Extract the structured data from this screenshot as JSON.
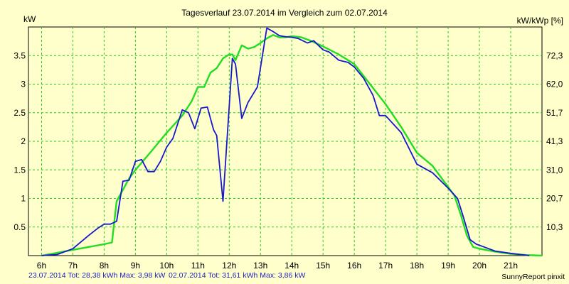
{
  "chart_data": {
    "type": "line",
    "title": "Tagesverlauf 23.07.2014 im Vergleich zum 02.07.2014",
    "ylabel_left": "kW",
    "ylabel_right": "kW/kWp [%]",
    "x_range": [
      5.58,
      22.0
    ],
    "ylim": [
      0,
      4.0
    ],
    "grid": true,
    "x_tick_labels": [
      "6h",
      "7h",
      "8h",
      "9h",
      "10h",
      "11h",
      "12h",
      "13h",
      "14h",
      "15h",
      "16h",
      "17h",
      "18h",
      "19h",
      "20h",
      "21h"
    ],
    "x_tick_values": [
      6,
      7,
      8,
      9,
      10,
      11,
      12,
      13,
      14,
      15,
      16,
      17,
      18,
      19,
      20,
      21
    ],
    "y_left_ticks": [
      {
        "value": 0.5,
        "label": "0.5"
      },
      {
        "value": 1,
        "label": "1"
      },
      {
        "value": 1.5,
        "label": "1.5"
      },
      {
        "value": 2,
        "label": "2"
      },
      {
        "value": 2.5,
        "label": "2.5"
      },
      {
        "value": 3,
        "label": "3"
      },
      {
        "value": 3.5,
        "label": "3.5"
      }
    ],
    "y_right_ticks": [
      {
        "value": 0.5,
        "label": "10,3"
      },
      {
        "value": 1,
        "label": "20,7"
      },
      {
        "value": 1.5,
        "label": "31,0"
      },
      {
        "value": 2,
        "label": "41,3"
      },
      {
        "value": 2.5,
        "label": "51,7"
      },
      {
        "value": 3,
        "label": "62,0"
      },
      {
        "value": 3.5,
        "label": "72,3"
      }
    ],
    "series": [
      {
        "name": "02.07.2014",
        "color": "#22dd22",
        "points": [
          [
            6.0,
            0.0
          ],
          [
            6.5,
            0.05
          ],
          [
            7.0,
            0.1
          ],
          [
            7.5,
            0.15
          ],
          [
            8.0,
            0.2
          ],
          [
            8.25,
            0.23
          ],
          [
            8.4,
            0.95
          ],
          [
            8.6,
            1.15
          ],
          [
            8.8,
            1.35
          ],
          [
            9.0,
            1.5
          ],
          [
            9.5,
            1.82
          ],
          [
            10.0,
            2.15
          ],
          [
            10.5,
            2.45
          ],
          [
            10.8,
            2.7
          ],
          [
            11.0,
            2.95
          ],
          [
            11.2,
            2.95
          ],
          [
            11.4,
            3.2
          ],
          [
            11.6,
            3.28
          ],
          [
            11.8,
            3.45
          ],
          [
            12.0,
            3.52
          ],
          [
            12.1,
            3.52
          ],
          [
            12.2,
            3.42
          ],
          [
            12.4,
            3.68
          ],
          [
            12.6,
            3.62
          ],
          [
            12.8,
            3.65
          ],
          [
            13.0,
            3.72
          ],
          [
            13.2,
            3.8
          ],
          [
            13.4,
            3.86
          ],
          [
            13.6,
            3.82
          ],
          [
            13.8,
            3.82
          ],
          [
            14.0,
            3.84
          ],
          [
            14.3,
            3.82
          ],
          [
            14.6,
            3.76
          ],
          [
            15.0,
            3.66
          ],
          [
            15.5,
            3.52
          ],
          [
            16.0,
            3.35
          ],
          [
            16.5,
            3.0
          ],
          [
            17.0,
            2.65
          ],
          [
            17.5,
            2.25
          ],
          [
            18.0,
            1.8
          ],
          [
            18.5,
            1.57
          ],
          [
            19.0,
            1.2
          ],
          [
            19.2,
            1.05
          ],
          [
            19.4,
            0.72
          ],
          [
            19.6,
            0.35
          ],
          [
            19.8,
            0.15
          ],
          [
            20.0,
            0.12
          ],
          [
            20.5,
            0.07
          ],
          [
            21.0,
            0.03
          ],
          [
            21.5,
            0.01
          ],
          [
            22.0,
            0.0
          ]
        ]
      },
      {
        "name": "23.07.2014",
        "color": "#1818cc",
        "points": [
          [
            6.0,
            0.0
          ],
          [
            6.5,
            0.02
          ],
          [
            7.0,
            0.12
          ],
          [
            7.5,
            0.35
          ],
          [
            7.8,
            0.48
          ],
          [
            8.0,
            0.55
          ],
          [
            8.2,
            0.55
          ],
          [
            8.4,
            0.6
          ],
          [
            8.6,
            1.3
          ],
          [
            8.8,
            1.32
          ],
          [
            9.0,
            1.65
          ],
          [
            9.2,
            1.68
          ],
          [
            9.4,
            1.47
          ],
          [
            9.6,
            1.47
          ],
          [
            9.8,
            1.65
          ],
          [
            10.0,
            1.9
          ],
          [
            10.2,
            2.05
          ],
          [
            10.5,
            2.55
          ],
          [
            10.7,
            2.5
          ],
          [
            10.9,
            2.22
          ],
          [
            11.1,
            2.58
          ],
          [
            11.3,
            2.6
          ],
          [
            11.5,
            2.2
          ],
          [
            11.6,
            2.1
          ],
          [
            11.8,
            0.95
          ],
          [
            12.1,
            3.45
          ],
          [
            12.2,
            3.35
          ],
          [
            12.4,
            2.4
          ],
          [
            12.6,
            2.68
          ],
          [
            12.9,
            2.95
          ],
          [
            13.2,
            3.98
          ],
          [
            13.4,
            3.92
          ],
          [
            13.6,
            3.85
          ],
          [
            13.8,
            3.83
          ],
          [
            14.0,
            3.82
          ],
          [
            14.2,
            3.8
          ],
          [
            14.5,
            3.72
          ],
          [
            14.7,
            3.76
          ],
          [
            15.0,
            3.6
          ],
          [
            15.2,
            3.56
          ],
          [
            15.5,
            3.42
          ],
          [
            15.8,
            3.38
          ],
          [
            16.0,
            3.3
          ],
          [
            16.3,
            3.1
          ],
          [
            16.6,
            2.8
          ],
          [
            16.8,
            2.45
          ],
          [
            17.0,
            2.45
          ],
          [
            17.5,
            2.15
          ],
          [
            18.0,
            1.6
          ],
          [
            18.5,
            1.45
          ],
          [
            19.0,
            1.18
          ],
          [
            19.3,
            1.0
          ],
          [
            19.5,
            0.65
          ],
          [
            19.7,
            0.28
          ],
          [
            19.9,
            0.2
          ],
          [
            20.2,
            0.14
          ],
          [
            20.5,
            0.08
          ],
          [
            21.0,
            0.04
          ],
          [
            21.3,
            0.02
          ],
          [
            21.6,
            0.0
          ]
        ]
      }
    ],
    "footer": {
      "series1_summary": "23.07.2014 Tot: 28,38 kWh Max: 3,98 kW",
      "series2_summary": "02.07.2014 Tot: 31,61 kWh Max: 3,86 kW",
      "credit": "SunnyReport pinxit"
    }
  }
}
